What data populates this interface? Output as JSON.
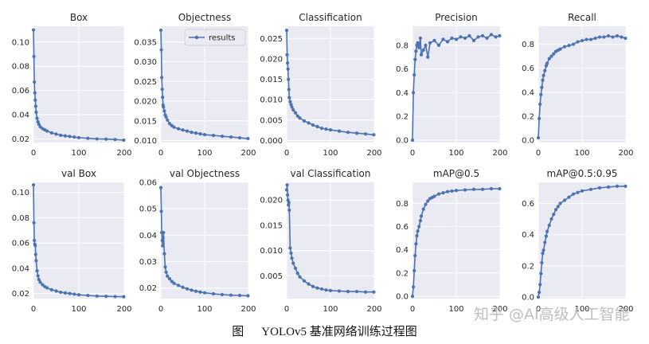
{
  "figure": {
    "caption_label": "图",
    "caption_text": "YOLOv5 基准网络训练过程图",
    "watermark": "知乎 @AI高级人工智能",
    "colors": {
      "line": "#4c72b0",
      "panel_bg": "#eaeaf2",
      "grid": "#ffffff",
      "text": "#262626"
    }
  },
  "chart_data": [
    {
      "type": "line",
      "title": "Box",
      "xlim": [
        0,
        200
      ],
      "ylim": [
        0.017,
        0.113
      ],
      "xticks": [
        0,
        100,
        200
      ],
      "yticks": [
        0.02,
        0.04,
        0.06,
        0.08,
        0.1
      ],
      "ytick_labels": [
        "0.02",
        "0.04",
        "0.06",
        "0.08",
        "0.10"
      ],
      "x": [
        0,
        1,
        2,
        3,
        4,
        5,
        6,
        8,
        10,
        12,
        15,
        20,
        25,
        30,
        40,
        50,
        60,
        70,
        80,
        90,
        100,
        120,
        140,
        160,
        180,
        199
      ],
      "y": [
        0.11,
        0.088,
        0.067,
        0.058,
        0.052,
        0.047,
        0.042,
        0.037,
        0.034,
        0.032,
        0.03,
        0.0285,
        0.0275,
        0.0265,
        0.025,
        0.024,
        0.023,
        0.0225,
        0.022,
        0.0215,
        0.021,
        0.0205,
        0.02,
        0.0198,
        0.0195,
        0.019
      ],
      "grid": true
    },
    {
      "type": "line",
      "title": "Objectness",
      "xlim": [
        0,
        200
      ],
      "ylim": [
        0.0095,
        0.039
      ],
      "xticks": [
        0,
        100,
        200
      ],
      "yticks": [
        0.01,
        0.015,
        0.02,
        0.025,
        0.03,
        0.035
      ],
      "ytick_labels": [
        "0.010",
        "0.015",
        "0.020",
        "0.025",
        "0.030",
        "0.035"
      ],
      "x": [
        0,
        1,
        2,
        3,
        4,
        5,
        6,
        8,
        10,
        12,
        15,
        20,
        25,
        30,
        40,
        50,
        60,
        70,
        80,
        90,
        100,
        120,
        140,
        160,
        180,
        199
      ],
      "y": [
        0.038,
        0.033,
        0.026,
        0.023,
        0.021,
        0.019,
        0.0185,
        0.0175,
        0.0165,
        0.016,
        0.0152,
        0.0143,
        0.0138,
        0.0134,
        0.013,
        0.0127,
        0.0124,
        0.0121,
        0.0119,
        0.0117,
        0.0115,
        0.0113,
        0.0111,
        0.0109,
        0.0107,
        0.0105
      ],
      "legend": {
        "series": [
          "results"
        ],
        "position": "top-right"
      },
      "grid": true
    },
    {
      "type": "line",
      "title": "Classification",
      "xlim": [
        0,
        200
      ],
      "ylim": [
        -0.0005,
        0.028
      ],
      "xticks": [
        0,
        100,
        200
      ],
      "yticks": [
        0.0,
        0.005,
        0.01,
        0.015,
        0.02,
        0.025
      ],
      "ytick_labels": [
        "0.000",
        "0.005",
        "0.010",
        "0.015",
        "0.020",
        "0.025"
      ],
      "x": [
        0,
        1,
        2,
        3,
        4,
        5,
        6,
        8,
        10,
        12,
        15,
        20,
        25,
        30,
        40,
        50,
        60,
        70,
        80,
        90,
        100,
        120,
        140,
        160,
        180,
        199
      ],
      "y": [
        0.027,
        0.021,
        0.019,
        0.0175,
        0.015,
        0.0125,
        0.0105,
        0.0095,
        0.0088,
        0.0082,
        0.0075,
        0.0068,
        0.006,
        0.0055,
        0.0048,
        0.0043,
        0.0038,
        0.0034,
        0.003,
        0.0028,
        0.0026,
        0.0023,
        0.002,
        0.0018,
        0.0016,
        0.0014
      ],
      "grid": true
    },
    {
      "type": "line",
      "title": "Precision",
      "xlim": [
        0,
        200
      ],
      "ylim": [
        -0.02,
        0.96
      ],
      "xticks": [
        0,
        100,
        200
      ],
      "yticks": [
        0.0,
        0.2,
        0.4,
        0.6,
        0.8
      ],
      "ytick_labels": [
        "0.0",
        "0.2",
        "0.4",
        "0.6",
        "0.8"
      ],
      "x": [
        0,
        2,
        4,
        6,
        8,
        10,
        12,
        15,
        18,
        20,
        25,
        30,
        35,
        40,
        50,
        60,
        70,
        80,
        90,
        100,
        110,
        120,
        130,
        140,
        150,
        160,
        170,
        180,
        190,
        199
      ],
      "y": [
        0.0,
        0.4,
        0.55,
        0.68,
        0.75,
        0.8,
        0.82,
        0.78,
        0.86,
        0.72,
        0.76,
        0.8,
        0.7,
        0.82,
        0.84,
        0.8,
        0.85,
        0.83,
        0.86,
        0.85,
        0.87,
        0.86,
        0.88,
        0.84,
        0.87,
        0.88,
        0.86,
        0.89,
        0.87,
        0.88
      ],
      "grid": true
    },
    {
      "type": "line",
      "title": "Recall",
      "xlim": [
        0,
        200
      ],
      "ylim": [
        -0.02,
        0.95
      ],
      "xticks": [
        0,
        100,
        200
      ],
      "yticks": [
        0.0,
        0.2,
        0.4,
        0.6,
        0.8
      ],
      "ytick_labels": [
        "0.0",
        "0.2",
        "0.4",
        "0.6",
        "0.8"
      ],
      "x": [
        0,
        2,
        4,
        6,
        8,
        10,
        12,
        15,
        18,
        20,
        25,
        30,
        35,
        40,
        45,
        50,
        60,
        70,
        80,
        90,
        100,
        110,
        120,
        130,
        140,
        150,
        160,
        170,
        180,
        190,
        199
      ],
      "y": [
        0.02,
        0.18,
        0.3,
        0.38,
        0.44,
        0.5,
        0.54,
        0.58,
        0.62,
        0.64,
        0.68,
        0.7,
        0.72,
        0.74,
        0.75,
        0.76,
        0.78,
        0.79,
        0.8,
        0.82,
        0.83,
        0.84,
        0.84,
        0.85,
        0.86,
        0.86,
        0.87,
        0.86,
        0.87,
        0.86,
        0.85
      ],
      "grid": true
    },
    {
      "type": "line",
      "title": "val Box",
      "xlim": [
        0,
        200
      ],
      "ylim": [
        0.016,
        0.108
      ],
      "xticks": [
        0,
        100,
        200
      ],
      "yticks": [
        0.02,
        0.04,
        0.06,
        0.08,
        0.1
      ],
      "ytick_labels": [
        "0.02",
        "0.04",
        "0.06",
        "0.08",
        "0.10"
      ],
      "x": [
        0,
        1,
        2,
        3,
        4,
        5,
        6,
        8,
        10,
        12,
        15,
        20,
        25,
        30,
        40,
        50,
        60,
        70,
        80,
        90,
        100,
        120,
        140,
        160,
        180,
        199
      ],
      "y": [
        0.106,
        0.076,
        0.062,
        0.059,
        0.058,
        0.051,
        0.046,
        0.038,
        0.034,
        0.031,
        0.029,
        0.027,
        0.0255,
        0.0245,
        0.023,
        0.022,
        0.021,
        0.0205,
        0.02,
        0.0195,
        0.019,
        0.0185,
        0.018,
        0.0178,
        0.0176,
        0.0175
      ],
      "grid": true
    },
    {
      "type": "line",
      "title": "val Objectness",
      "xlim": [
        0,
        200
      ],
      "ylim": [
        0.016,
        0.06
      ],
      "xticks": [
        0,
        100,
        200
      ],
      "yticks": [
        0.02,
        0.03,
        0.04,
        0.05,
        0.06
      ],
      "ytick_labels": [
        "0.02",
        "0.03",
        "0.04",
        "0.05",
        "0.06"
      ],
      "x": [
        0,
        1,
        2,
        3,
        4,
        5,
        6,
        8,
        10,
        12,
        15,
        20,
        25,
        30,
        40,
        50,
        60,
        70,
        80,
        90,
        100,
        120,
        140,
        160,
        180,
        199
      ],
      "y": [
        0.058,
        0.049,
        0.041,
        0.038,
        0.036,
        0.039,
        0.041,
        0.033,
        0.028,
        0.026,
        0.0245,
        0.0235,
        0.0225,
        0.0218,
        0.021,
        0.0203,
        0.0197,
        0.0192,
        0.0188,
        0.0185,
        0.0182,
        0.0178,
        0.0175,
        0.0173,
        0.0172,
        0.0171
      ],
      "grid": true
    },
    {
      "type": "line",
      "title": "val Classification",
      "xlim": [
        0,
        200
      ],
      "ylim": [
        0.0005,
        0.0235
      ],
      "xticks": [
        0,
        100,
        200
      ],
      "yticks": [
        0.005,
        0.01,
        0.015,
        0.02
      ],
      "ytick_labels": [
        "0.005",
        "0.010",
        "0.015",
        "0.020"
      ],
      "x": [
        0,
        1,
        2,
        3,
        4,
        5,
        6,
        8,
        10,
        12,
        15,
        20,
        25,
        30,
        40,
        50,
        60,
        70,
        80,
        90,
        100,
        120,
        140,
        160,
        180,
        199
      ],
      "y": [
        0.022,
        0.023,
        0.021,
        0.02,
        0.019,
        0.0195,
        0.018,
        0.0105,
        0.0095,
        0.0085,
        0.0075,
        0.0065,
        0.0055,
        0.0048,
        0.004,
        0.0034,
        0.0029,
        0.0026,
        0.0024,
        0.0022,
        0.0021,
        0.002,
        0.0019,
        0.0019,
        0.0018,
        0.0018
      ],
      "grid": true
    },
    {
      "type": "line",
      "title": "mAP@0.5",
      "xlim": [
        0,
        200
      ],
      "ylim": [
        -0.02,
        0.98
      ],
      "xticks": [
        0,
        100,
        200
      ],
      "yticks": [
        0.0,
        0.2,
        0.4,
        0.6,
        0.8
      ],
      "ytick_labels": [
        "0.0",
        "0.2",
        "0.4",
        "0.6",
        "0.8"
      ],
      "x": [
        0,
        2,
        4,
        6,
        8,
        10,
        12,
        15,
        18,
        20,
        25,
        30,
        35,
        40,
        45,
        50,
        60,
        70,
        80,
        90,
        100,
        120,
        140,
        160,
        180,
        199
      ],
      "y": [
        0.0,
        0.08,
        0.22,
        0.35,
        0.45,
        0.52,
        0.56,
        0.6,
        0.65,
        0.69,
        0.75,
        0.79,
        0.82,
        0.84,
        0.85,
        0.86,
        0.88,
        0.89,
        0.9,
        0.905,
        0.91,
        0.915,
        0.92,
        0.92,
        0.925,
        0.925
      ],
      "grid": true
    },
    {
      "type": "line",
      "title": "mAP@0.5:0.95",
      "xlim": [
        0,
        200
      ],
      "ylim": [
        -0.01,
        0.735
      ],
      "xticks": [
        0,
        100,
        200
      ],
      "yticks": [
        0.0,
        0.2,
        0.4,
        0.6
      ],
      "ytick_labels": [
        "0.0",
        "0.2",
        "0.4",
        "0.6"
      ],
      "x": [
        0,
        2,
        4,
        6,
        8,
        10,
        12,
        15,
        18,
        20,
        25,
        30,
        35,
        40,
        45,
        50,
        60,
        70,
        80,
        90,
        100,
        120,
        140,
        160,
        180,
        199
      ],
      "y": [
        0.0,
        0.03,
        0.08,
        0.15,
        0.22,
        0.28,
        0.3,
        0.35,
        0.39,
        0.42,
        0.46,
        0.5,
        0.53,
        0.56,
        0.58,
        0.6,
        0.62,
        0.64,
        0.66,
        0.67,
        0.68,
        0.69,
        0.7,
        0.705,
        0.71,
        0.71
      ],
      "grid": true
    }
  ]
}
